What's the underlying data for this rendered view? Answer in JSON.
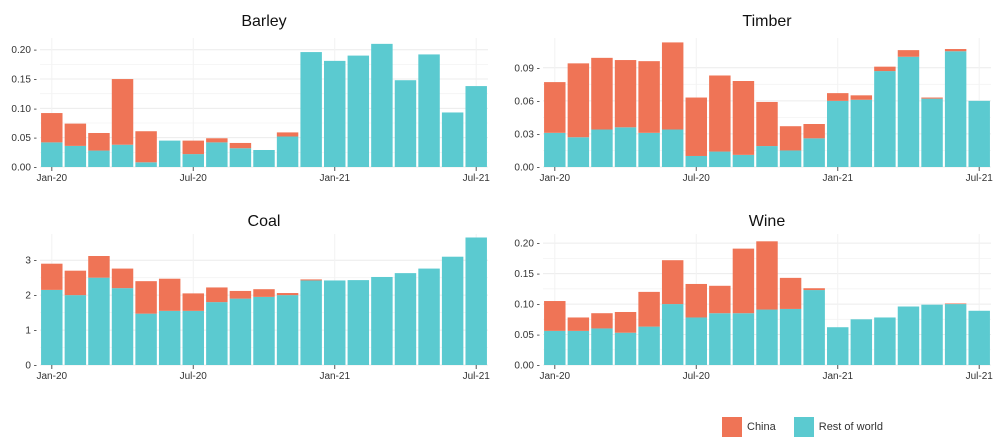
{
  "legend": {
    "china_label": "China",
    "row_label": "Rest of world"
  },
  "colors": {
    "china": "#EF7456",
    "rest_of_world": "#5BCAD0",
    "grid": "#ECECEC",
    "axis_text": "#333333",
    "title": "#111111"
  },
  "chart_data": [
    {
      "type": "bar",
      "stacked": true,
      "title": "Barley",
      "xlabel": "",
      "ylabel": "",
      "months": [
        "Jan-20",
        "Feb-20",
        "Mar-20",
        "Apr-20",
        "May-20",
        "Jun-20",
        "Jul-20",
        "Aug-20",
        "Sep-20",
        "Oct-20",
        "Nov-20",
        "Dec-20",
        "Jan-21",
        "Feb-21",
        "Mar-21",
        "Apr-21",
        "May-21",
        "Jun-21",
        "Jul-21"
      ],
      "x_tick_labels": [
        "Jan-20",
        "Jul-20",
        "Jan-21",
        "Jul-21"
      ],
      "ylim": [
        0,
        0.22
      ],
      "y_ticks": [
        0.0,
        0.05,
        0.1,
        0.15,
        0.2
      ],
      "y_tick_labels": [
        "0.00 -",
        "0.05 -",
        "0.10 -",
        "0.15 -",
        "0.20 -"
      ],
      "series": [
        {
          "name": "Rest of world",
          "values": [
            0.042,
            0.036,
            0.028,
            0.038,
            0.008,
            0.045,
            0.022,
            0.042,
            0.032,
            0.029,
            0.052,
            0.196,
            0.181,
            0.19,
            0.21,
            0.148,
            0.192,
            0.093,
            0.138
          ]
        },
        {
          "name": "China",
          "values": [
            0.05,
            0.038,
            0.03,
            0.112,
            0.053,
            0.0,
            0.023,
            0.007,
            0.009,
            0.0,
            0.007,
            0.0,
            0.0,
            0.0,
            0.0,
            0.0,
            0.0,
            0.0,
            0.0
          ]
        }
      ]
    },
    {
      "type": "bar",
      "stacked": true,
      "title": "Timber",
      "xlabel": "",
      "ylabel": "",
      "months": [
        "Jan-20",
        "Feb-20",
        "Mar-20",
        "Apr-20",
        "May-20",
        "Jun-20",
        "Jul-20",
        "Aug-20",
        "Sep-20",
        "Oct-20",
        "Nov-20",
        "Dec-20",
        "Jan-21",
        "Feb-21",
        "Mar-21",
        "Apr-21",
        "May-21",
        "Jun-21",
        "Jul-21"
      ],
      "x_tick_labels": [
        "Jan-20",
        "Jul-20",
        "Jan-21",
        "Jul-21"
      ],
      "ylim": [
        0,
        0.117
      ],
      "y_ticks": [
        0.0,
        0.03,
        0.06,
        0.09
      ],
      "y_tick_labels": [
        "0.00 -",
        "0.03 -",
        "0.06 -",
        "0.09 -"
      ],
      "series": [
        {
          "name": "Rest of world",
          "values": [
            0.031,
            0.027,
            0.034,
            0.036,
            0.031,
            0.034,
            0.01,
            0.014,
            0.011,
            0.019,
            0.015,
            0.026,
            0.06,
            0.061,
            0.087,
            0.1,
            0.062,
            0.105,
            0.06
          ]
        },
        {
          "name": "China",
          "values": [
            0.046,
            0.067,
            0.065,
            0.061,
            0.065,
            0.079,
            0.053,
            0.069,
            0.067,
            0.04,
            0.022,
            0.013,
            0.007,
            0.004,
            0.004,
            0.006,
            0.001,
            0.002,
            0.0
          ]
        }
      ]
    },
    {
      "type": "bar",
      "stacked": true,
      "title": "Coal",
      "xlabel": "",
      "ylabel": "",
      "months": [
        "Jan-20",
        "Feb-20",
        "Mar-20",
        "Apr-20",
        "May-20",
        "Jun-20",
        "Jul-20",
        "Aug-20",
        "Sep-20",
        "Oct-20",
        "Nov-20",
        "Dec-20",
        "Jan-21",
        "Feb-21",
        "Mar-21",
        "Apr-21",
        "May-21",
        "Jun-21",
        "Jul-21"
      ],
      "x_tick_labels": [
        "Jan-20",
        "Jul-20",
        "Jan-21",
        "Jul-21"
      ],
      "ylim": [
        0,
        3.75
      ],
      "y_ticks": [
        0,
        1,
        2,
        3
      ],
      "y_tick_labels": [
        "0 -",
        "1 -",
        "2 -",
        "3 -"
      ],
      "series": [
        {
          "name": "Rest of world",
          "values": [
            2.15,
            2.0,
            2.5,
            2.2,
            1.47,
            1.55,
            1.55,
            1.8,
            1.9,
            1.95,
            2.0,
            2.42,
            2.42,
            2.43,
            2.52,
            2.63,
            2.76,
            3.1,
            3.65
          ]
        },
        {
          "name": "China",
          "values": [
            0.75,
            0.7,
            0.62,
            0.56,
            0.93,
            0.92,
            0.5,
            0.42,
            0.22,
            0.22,
            0.06,
            0.03,
            0.0,
            0.0,
            0.0,
            0.0,
            0.0,
            0.0,
            0.0
          ]
        }
      ]
    },
    {
      "type": "bar",
      "stacked": true,
      "title": "Wine",
      "xlabel": "",
      "ylabel": "",
      "months": [
        "Jan-20",
        "Feb-20",
        "Mar-20",
        "Apr-20",
        "May-20",
        "Jun-20",
        "Jul-20",
        "Aug-20",
        "Sep-20",
        "Oct-20",
        "Nov-20",
        "Dec-20",
        "Jan-21",
        "Feb-21",
        "Mar-21",
        "Apr-21",
        "May-21",
        "Jun-21",
        "Jul-21"
      ],
      "x_tick_labels": [
        "Jan-20",
        "Jul-20",
        "Jan-21",
        "Jul-21"
      ],
      "ylim": [
        0,
        0.215
      ],
      "y_ticks": [
        0.0,
        0.05,
        0.1,
        0.15,
        0.2
      ],
      "y_tick_labels": [
        "0.00 -",
        "0.05 -",
        "0.10 -",
        "0.15 -",
        "0.20 -"
      ],
      "series": [
        {
          "name": "Rest of world",
          "values": [
            0.056,
            0.056,
            0.06,
            0.053,
            0.063,
            0.1,
            0.078,
            0.085,
            0.085,
            0.091,
            0.092,
            0.123,
            0.062,
            0.075,
            0.078,
            0.096,
            0.099,
            0.1,
            0.089
          ]
        },
        {
          "name": "China",
          "values": [
            0.049,
            0.022,
            0.025,
            0.034,
            0.057,
            0.072,
            0.055,
            0.045,
            0.106,
            0.112,
            0.051,
            0.003,
            0.0,
            0.0,
            0.0,
            0.0,
            0.0,
            0.001,
            0.0
          ]
        }
      ]
    }
  ]
}
